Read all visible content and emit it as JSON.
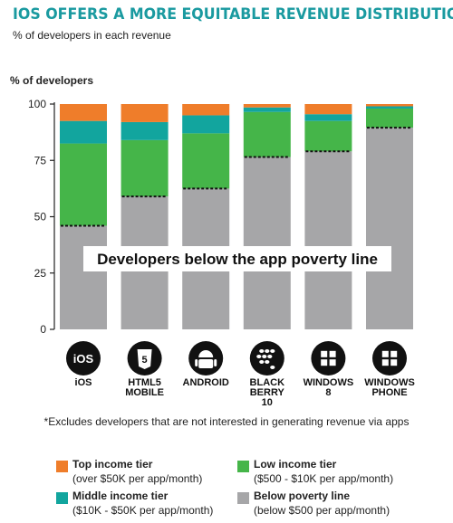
{
  "title": "IOS OFFERS A MORE EQUITABLE REVENUE DISTRIBUTION",
  "subtitle": "% of developers in each revenue",
  "footnote": "*Excludes developers that are not interested in generating revenue via apps",
  "legend": [
    {
      "label": "Top income tier",
      "desc": "(over $50K per app/month)",
      "color": "#ef7d2a"
    },
    {
      "label": "Low income tier",
      "desc": "($500 - $10K per app/month)",
      "color": "#45b549"
    },
    {
      "label": "Middle income tier",
      "desc": "($10K - $50K per app/month)",
      "color": "#12a59e"
    },
    {
      "label": "Below poverty line",
      "desc": "(below $500 per app/month)",
      "color": "#a6a6a8"
    }
  ],
  "platform_icons": [
    {
      "name": "ios-icon",
      "text": "iOS"
    },
    {
      "name": "html5-icon",
      "text": "HTML 5"
    },
    {
      "name": "android-icon",
      "text": ""
    },
    {
      "name": "blackberry-icon",
      "text": ""
    },
    {
      "name": "windows-8-icon",
      "text": ""
    },
    {
      "name": "windows-phone-icon",
      "text": ""
    }
  ],
  "chart_data": {
    "type": "bar",
    "stacked": true,
    "ylabel": "% of developers",
    "ylim": [
      0,
      100
    ],
    "yticks": [
      0,
      25,
      50,
      75,
      100
    ],
    "categories": [
      "iOS",
      "HTML5\nMOBILE",
      "ANDROID",
      "BLACK\nBERRY\n10",
      "WINDOWS\n8",
      "WINDOWS\nPHONE"
    ],
    "series": [
      {
        "name": "Below poverty line",
        "color": "#a6a6a8",
        "values": [
          46,
          59,
          62.5,
          76.5,
          79,
          89.5
        ]
      },
      {
        "name": "Low income tier",
        "color": "#45b549",
        "values": [
          36.5,
          25,
          24.5,
          20,
          13.5,
          8.5
        ]
      },
      {
        "name": "Middle income tier",
        "color": "#12a59e",
        "values": [
          10,
          8,
          8,
          2,
          3,
          1
        ]
      },
      {
        "name": "Top income tier",
        "color": "#ef7d2a",
        "values": [
          7.5,
          8,
          5,
          1.5,
          4.5,
          1
        ]
      }
    ],
    "annotation": "Developers below the app poverty line",
    "grid": false
  }
}
